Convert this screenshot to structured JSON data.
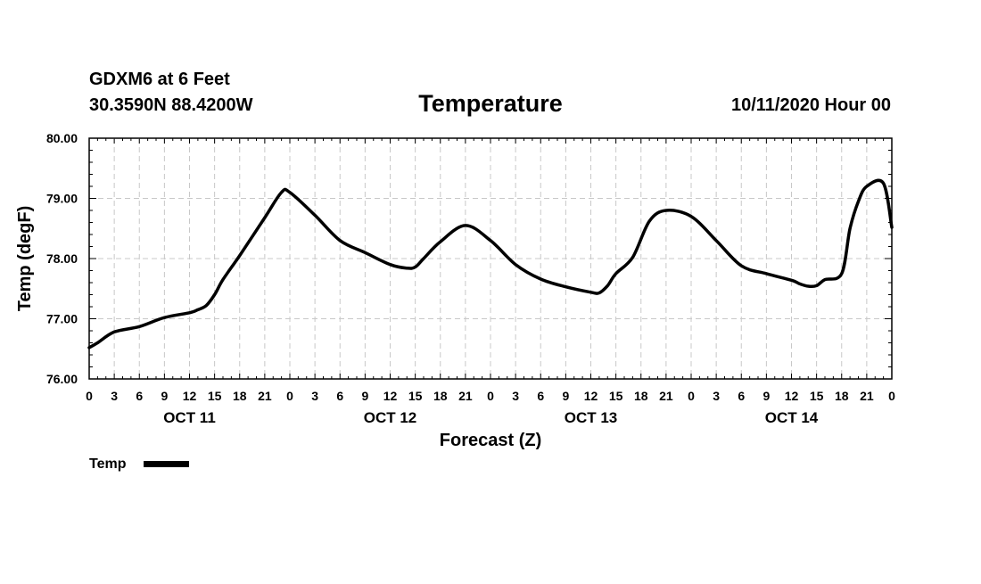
{
  "header": {
    "station": "GDXM6 at 6 Feet",
    "coords": "30.3590N 88.4200W",
    "title": "Temperature",
    "run_time": "10/11/2020 Hour 00"
  },
  "legend": {
    "label": "Temp"
  },
  "colors": {
    "line": "#000000",
    "grid": "#c8c8c8",
    "background": "#ffffff"
  },
  "chart_data": {
    "type": "line",
    "title": "Temperature",
    "xlabel": "Forecast (Z)",
    "ylabel": "Temp (degF)",
    "ylim": [
      76.0,
      80.0
    ],
    "xlim": [
      0,
      96
    ],
    "y_ticks": [
      "76.00",
      "77.00",
      "78.00",
      "79.00",
      "80.00"
    ],
    "x_tick_labels": [
      "0",
      "3",
      "6",
      "9",
      "12",
      "15",
      "18",
      "21",
      "0",
      "3",
      "6",
      "9",
      "12",
      "15",
      "18",
      "21",
      "0",
      "3",
      "6",
      "9",
      "12",
      "15",
      "18",
      "21",
      "0",
      "3",
      "6",
      "9",
      "12",
      "15",
      "18",
      "21",
      "0"
    ],
    "x_tick_hours": [
      0,
      3,
      6,
      9,
      12,
      15,
      18,
      21,
      24,
      27,
      30,
      33,
      36,
      39,
      42,
      45,
      48,
      51,
      54,
      57,
      60,
      63,
      66,
      69,
      72,
      75,
      78,
      81,
      84,
      87,
      90,
      93,
      96
    ],
    "day_labels": [
      {
        "label": "OCT 11",
        "hour": 12
      },
      {
        "label": "OCT 12",
        "hour": 36
      },
      {
        "label": "OCT 13",
        "hour": 60
      },
      {
        "label": "OCT 14",
        "hour": 84
      }
    ],
    "grid": true,
    "legend_position": "bottom-left",
    "series": [
      {
        "name": "Temp",
        "x": [
          0,
          1,
          3,
          6,
          9,
          12,
          13,
          14,
          15,
          16,
          18,
          21,
          23,
          24,
          27,
          30,
          33,
          36,
          38,
          39,
          40,
          42,
          45,
          48,
          51,
          54,
          57,
          60,
          61,
          62,
          63,
          65,
          67,
          69,
          72,
          75,
          78,
          81,
          84,
          85,
          86,
          87,
          88,
          90,
          91,
          92,
          93,
          95,
          96
        ],
        "y": [
          76.52,
          76.6,
          76.78,
          76.87,
          77.02,
          77.1,
          77.15,
          77.22,
          77.4,
          77.65,
          78.05,
          78.68,
          79.1,
          79.1,
          78.72,
          78.3,
          78.1,
          77.9,
          77.84,
          77.86,
          78.0,
          78.28,
          78.55,
          78.3,
          77.9,
          77.66,
          77.53,
          77.44,
          77.43,
          77.55,
          77.75,
          78.02,
          78.62,
          78.8,
          78.7,
          78.3,
          77.88,
          77.75,
          77.64,
          77.58,
          77.54,
          77.55,
          77.65,
          77.75,
          78.5,
          78.95,
          79.2,
          79.25,
          78.52
        ]
      }
    ]
  }
}
